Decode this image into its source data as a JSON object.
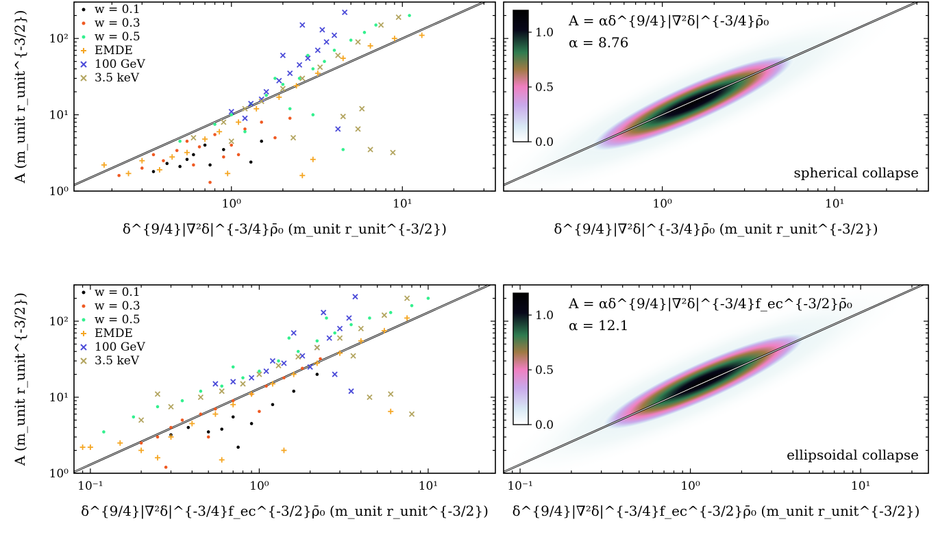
{
  "figure": {
    "legend_entries": [
      {
        "label": "w = 0.1",
        "color": "#000000",
        "marker": "dot"
      },
      {
        "label": "w = 0.3",
        "color": "#ef5a23",
        "marker": "dot"
      },
      {
        "label": "w = 0.5",
        "color": "#33f08e",
        "marker": "dot"
      },
      {
        "label": "EMDE",
        "color": "#f5a623",
        "marker": "plus"
      },
      {
        "label": "100 GeV",
        "color": "#4b4bd8",
        "marker": "x"
      },
      {
        "label": "3.5 keV",
        "color": "#b3a560",
        "marker": "x"
      }
    ],
    "colorbar": {
      "ticks": [
        "0.0",
        "0.5",
        "1.0"
      ],
      "range": [
        0,
        1.2
      ],
      "colormap": [
        "#ffffff",
        "#d8e8f5",
        "#c9a8ea",
        "#f07fc0",
        "#a07a44",
        "#2f7c50",
        "#08081a",
        "#000000"
      ]
    },
    "one_to_one_line": {
      "color": "#000000",
      "slope": 1
    }
  },
  "chart_data": [
    {
      "type": "scatter",
      "panel": "top-left",
      "xlabel": "δ^{9/4}|∇²δ|^{-3/4}ρ̄₀ (m_unit r_unit^{-3/2})",
      "ylabel": "A (m_unit r_unit^{-3/2})",
      "xscale": "log",
      "yscale": "log",
      "xlim": [
        0.12,
        35
      ],
      "ylim": [
        1,
        300
      ],
      "x_tick_labels": [
        "10⁰",
        "10¹"
      ],
      "y_tick_labels": [
        "10⁰",
        "10¹",
        "10²"
      ],
      "series": [
        {
          "name": "w = 0.1",
          "points": [
            [
              0.35,
              1.8
            ],
            [
              0.42,
              2.3
            ],
            [
              0.5,
              2.1
            ],
            [
              0.6,
              3.0
            ],
            [
              0.75,
              2.2
            ],
            [
              0.9,
              3.5
            ],
            [
              1.3,
              2.4
            ],
            [
              1.5,
              4.5
            ],
            [
              0.55,
              2.6
            ],
            [
              0.7,
              4.0
            ]
          ]
        },
        {
          "name": "w = 0.3",
          "points": [
            [
              0.22,
              1.6
            ],
            [
              0.3,
              2.0
            ],
            [
              0.35,
              3.0
            ],
            [
              0.4,
              2.5
            ],
            [
              0.48,
              3.4
            ],
            [
              0.55,
              4.5
            ],
            [
              0.65,
              3.8
            ],
            [
              0.75,
              1.3
            ],
            [
              0.8,
              5.5
            ],
            [
              1.0,
              4.0
            ],
            [
              1.2,
              6.5
            ],
            [
              1.5,
              8.0
            ],
            [
              0.9,
              2.8
            ],
            [
              1.8,
              5.0
            ],
            [
              2.2,
              9.0
            ],
            [
              0.6,
              2.2
            ],
            [
              1.1,
              3.0
            ]
          ]
        },
        {
          "name": "w = 0.5",
          "points": [
            [
              0.5,
              4.5
            ],
            [
              0.8,
              7.5
            ],
            [
              1.0,
              10
            ],
            [
              1.3,
              14
            ],
            [
              1.6,
              18
            ],
            [
              2.0,
              25
            ],
            [
              2.5,
              30
            ],
            [
              3.0,
              40
            ],
            [
              3.5,
              50
            ],
            [
              4.0,
              70
            ],
            [
              5.0,
              95
            ],
            [
              6.0,
              120
            ],
            [
              7.0,
              150
            ],
            [
              11.0,
              200
            ],
            [
              1.2,
              6.0
            ],
            [
              2.2,
              12
            ],
            [
              3.0,
              10
            ],
            [
              1.8,
              30
            ],
            [
              2.8,
              60
            ],
            [
              4.5,
              3.5
            ]
          ]
        },
        {
          "name": "EMDE",
          "points": [
            [
              0.18,
              2.2
            ],
            [
              0.25,
              1.7
            ],
            [
              0.3,
              2.5
            ],
            [
              0.38,
              1.9
            ],
            [
              0.45,
              2.8
            ],
            [
              0.55,
              3.2
            ],
            [
              0.7,
              4.8
            ],
            [
              0.85,
              6.0
            ],
            [
              1.1,
              8.0
            ],
            [
              1.4,
              12
            ],
            [
              1.9,
              17
            ],
            [
              2.4,
              24
            ],
            [
              3.2,
              35
            ],
            [
              4.5,
              55
            ],
            [
              6.5,
              80
            ],
            [
              9.0,
              100
            ],
            [
              13.0,
              110
            ],
            [
              3.0,
              2.6
            ],
            [
              2.6,
              1.6
            ],
            [
              0.95,
              1.7
            ]
          ]
        },
        {
          "name": "100 GeV",
          "points": [
            [
              1.0,
              11
            ],
            [
              1.3,
              14
            ],
            [
              1.6,
              20
            ],
            [
              1.9,
              28
            ],
            [
              2.2,
              35
            ],
            [
              2.5,
              45
            ],
            [
              2.8,
              55
            ],
            [
              3.2,
              70
            ],
            [
              3.6,
              90
            ],
            [
              4.0,
              110
            ],
            [
              4.6,
              220
            ],
            [
              2.6,
              150
            ],
            [
              2.0,
              60
            ],
            [
              3.4,
              130
            ],
            [
              4.2,
              6.5
            ],
            [
              1.5,
              16
            ],
            [
              1.2,
              9.0
            ]
          ]
        },
        {
          "name": "3.5 keV",
          "points": [
            [
              0.6,
              5.0
            ],
            [
              0.9,
              8.0
            ],
            [
              1.2,
              12
            ],
            [
              1.5,
              15
            ],
            [
              2.0,
              22
            ],
            [
              2.6,
              30
            ],
            [
              3.3,
              42
            ],
            [
              4.2,
              60
            ],
            [
              5.5,
              90
            ],
            [
              7.5,
              150
            ],
            [
              9.5,
              190
            ],
            [
              4.5,
              9.5
            ],
            [
              5.5,
              6.5
            ],
            [
              6.5,
              3.5
            ],
            [
              8.8,
              3.2
            ],
            [
              5.8,
              12
            ],
            [
              2.3,
              5.0
            ],
            [
              1.0,
              4.5
            ]
          ]
        }
      ]
    },
    {
      "type": "heatmap",
      "panel": "top-right",
      "xlabel": "δ^{9/4}|∇²δ|^{-3/4}ρ̄₀ (m_unit r_unit^{-3/2})",
      "xscale": "log",
      "yscale": "log",
      "xlim": [
        0.12,
        35
      ],
      "ylim": [
        1,
        300
      ],
      "x_tick_labels": [
        "10⁰",
        "10¹"
      ],
      "annotation": {
        "formula": "A = αδ^{9/4}|∇²δ|^{-3/4}ρ̄₀",
        "alpha": "α = 8.76",
        "label": "spherical collapse"
      },
      "density_center_x": 1.5,
      "density_peak_value": 1.15
    },
    {
      "type": "scatter",
      "panel": "bottom-left",
      "xlabel": "δ^{9/4}|∇²δ|^{-3/4}f_ec^{-3/2}ρ̄₀ (m_unit r_unit^{-3/2})",
      "ylabel": "A (m_unit r_unit^{-3/2})",
      "xscale": "log",
      "yscale": "log",
      "xlim": [
        0.08,
        25
      ],
      "ylim": [
        1,
        300
      ],
      "x_tick_labels": [
        "10⁻¹",
        "10⁰",
        "10¹"
      ],
      "y_tick_labels": [
        "10⁰",
        "10¹",
        "10²"
      ],
      "series": [
        {
          "name": "w = 0.1",
          "points": [
            [
              0.3,
              3.2
            ],
            [
              0.38,
              4.0
            ],
            [
              0.5,
              3.5
            ],
            [
              0.6,
              3.8
            ],
            [
              0.75,
              2.2
            ],
            [
              0.7,
              5.5
            ],
            [
              1.2,
              8.0
            ],
            [
              0.9,
              4.5
            ],
            [
              1.6,
              12
            ],
            [
              2.2,
              20
            ]
          ]
        },
        {
          "name": "w = 0.3",
          "points": [
            [
              0.2,
              2.5
            ],
            [
              0.25,
              3.0
            ],
            [
              0.3,
              4.0
            ],
            [
              0.35,
              5.0
            ],
            [
              0.45,
              6.0
            ],
            [
              0.55,
              7.0
            ],
            [
              0.7,
              9.0
            ],
            [
              0.9,
              11
            ],
            [
              1.1,
              14
            ],
            [
              1.4,
              18
            ],
            [
              1.8,
              24
            ],
            [
              2.3,
              32
            ],
            [
              0.28,
              1.2
            ],
            [
              0.5,
              3.0
            ],
            [
              1.0,
              6.5
            ]
          ]
        },
        {
          "name": "w = 0.5",
          "points": [
            [
              0.12,
              3.5
            ],
            [
              0.18,
              5.5
            ],
            [
              0.25,
              7.5
            ],
            [
              0.35,
              9.0
            ],
            [
              0.45,
              12
            ],
            [
              0.6,
              14
            ],
            [
              0.8,
              18
            ],
            [
              1.0,
              22
            ],
            [
              1.3,
              30
            ],
            [
              1.7,
              40
            ],
            [
              2.2,
              55
            ],
            [
              2.8,
              70
            ],
            [
              3.5,
              90
            ],
            [
              4.5,
              110
            ],
            [
              6.0,
              130
            ],
            [
              8.0,
              160
            ],
            [
              10.0,
              200
            ],
            [
              0.7,
              25
            ],
            [
              1.5,
              60
            ],
            [
              2.5,
              110
            ]
          ]
        },
        {
          "name": "EMDE",
          "points": [
            [
              0.09,
              2.2
            ],
            [
              0.1,
              2.2
            ],
            [
              0.15,
              2.5
            ],
            [
              0.2,
              2.0
            ],
            [
              0.25,
              1.6
            ],
            [
              0.3,
              3.0
            ],
            [
              0.4,
              4.5
            ],
            [
              0.55,
              6.0
            ],
            [
              0.7,
              8.0
            ],
            [
              0.9,
              11
            ],
            [
              1.2,
              15
            ],
            [
              1.6,
              20
            ],
            [
              2.2,
              28
            ],
            [
              3.0,
              38
            ],
            [
              4.0,
              55
            ],
            [
              5.5,
              75
            ],
            [
              7.5,
              110
            ],
            [
              0.6,
              1.5
            ],
            [
              1.4,
              2.0
            ],
            [
              6.0,
              6.5
            ]
          ]
        },
        {
          "name": "100 GeV",
          "points": [
            [
              0.7,
              16
            ],
            [
              0.9,
              18
            ],
            [
              1.1,
              22
            ],
            [
              1.4,
              28
            ],
            [
              1.8,
              35
            ],
            [
              2.2,
              45
            ],
            [
              2.6,
              60
            ],
            [
              3.0,
              80
            ],
            [
              3.4,
              110
            ],
            [
              3.7,
              210
            ],
            [
              1.6,
              70
            ],
            [
              2.4,
              130
            ],
            [
              2.8,
              20
            ],
            [
              3.5,
              12
            ],
            [
              1.2,
              30
            ],
            [
              0.55,
              15
            ],
            [
              2.0,
              25
            ]
          ]
        },
        {
          "name": "3.5 keV",
          "points": [
            [
              0.2,
              5.0
            ],
            [
              0.3,
              7.5
            ],
            [
              0.45,
              10
            ],
            [
              0.6,
              12
            ],
            [
              0.8,
              15
            ],
            [
              1.0,
              20
            ],
            [
              1.3,
              26
            ],
            [
              1.7,
              34
            ],
            [
              2.2,
              45
            ],
            [
              3.0,
              60
            ],
            [
              4.0,
              80
            ],
            [
              5.5,
              120
            ],
            [
              7.5,
              200
            ],
            [
              4.5,
              10
            ],
            [
              6.0,
              11
            ],
            [
              8.0,
              6.0
            ],
            [
              3.6,
              35
            ],
            [
              0.25,
              11
            ]
          ]
        }
      ]
    },
    {
      "type": "heatmap",
      "panel": "bottom-right",
      "xlabel": "δ^{9/4}|∇²δ|^{-3/4}f_ec^{-3/2}ρ̄₀ (m_unit r_unit^{-3/2})",
      "xscale": "log",
      "yscale": "log",
      "xlim": [
        0.08,
        25
      ],
      "ylim": [
        1,
        300
      ],
      "x_tick_labels": [
        "10⁻¹",
        "10⁰",
        "10¹"
      ],
      "annotation": {
        "formula": "A = αδ^{9/4}|∇²δ|^{-3/4}f_ec^{-3/2}ρ̄₀",
        "alpha": "α = 12.1",
        "label": "ellipsoidal collapse"
      },
      "density_center_x": 1.2,
      "density_peak_value": 1.2
    }
  ]
}
